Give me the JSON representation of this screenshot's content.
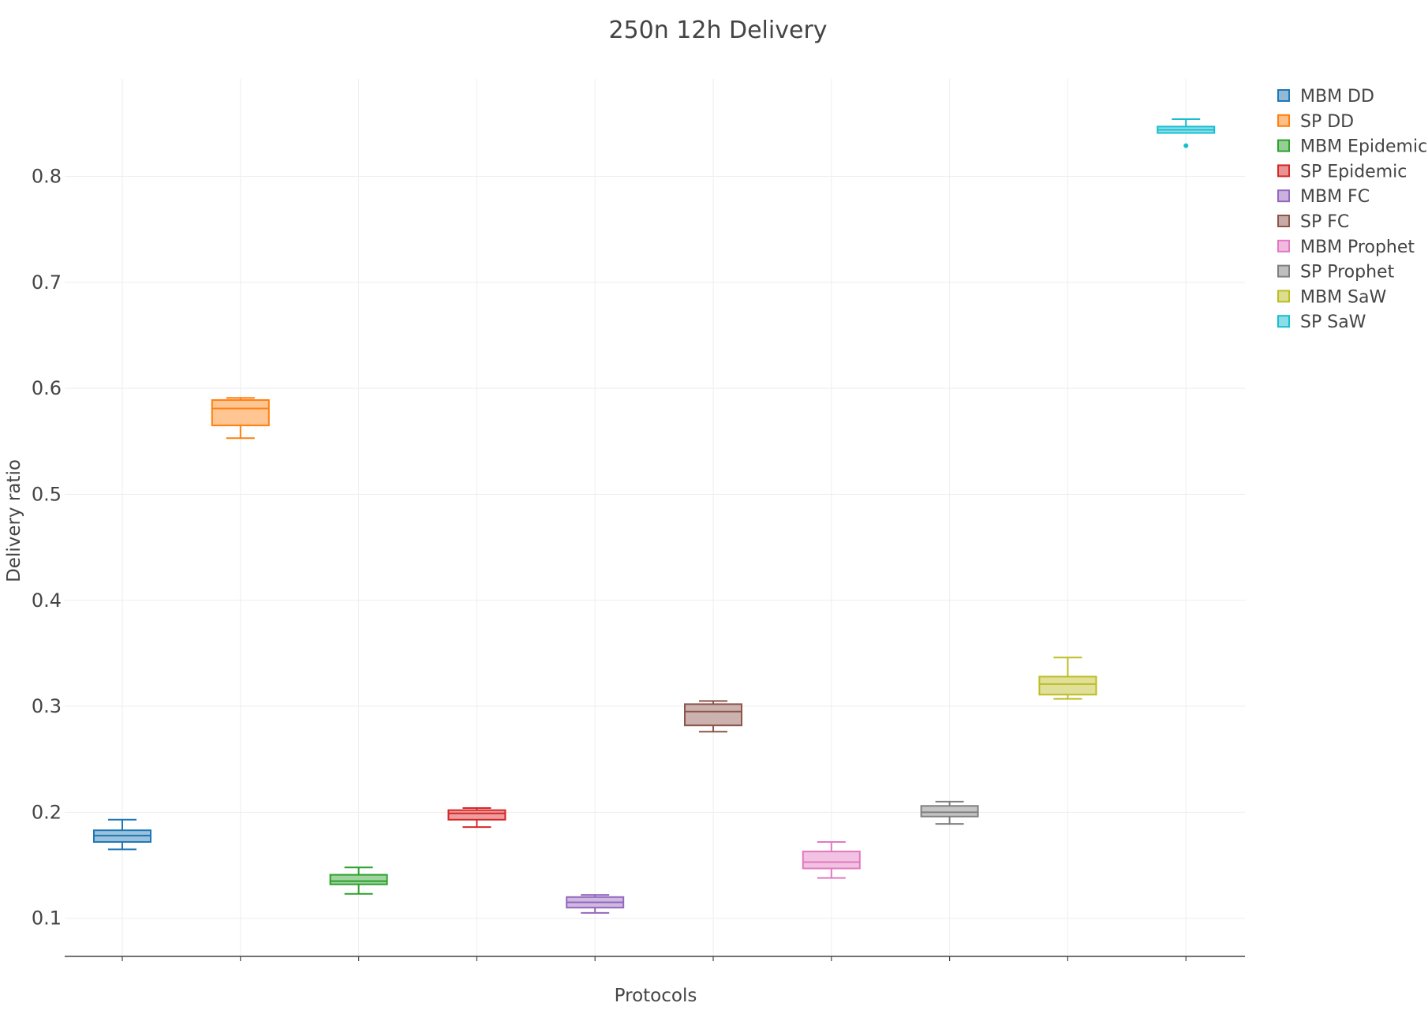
{
  "chart_data": {
    "type": "box",
    "title": "250n 12h Delivery",
    "xlabel": "Protocols",
    "ylabel": "Delivery ratio",
    "ylim": [
      0.064,
      0.892
    ],
    "yticks": [
      0.1,
      0.2,
      0.3,
      0.4,
      0.5,
      0.6,
      0.7,
      0.8
    ],
    "ytick_labels": [
      "0.1",
      "0.2",
      "0.3",
      "0.4",
      "0.5",
      "0.6",
      "0.7",
      "0.8"
    ],
    "grid": true,
    "legend_position": "top-right",
    "series": [
      {
        "name": "MBM DD",
        "color": "#1f77b4",
        "fill": "#8fbbd9",
        "min": 0.165,
        "q1": 0.172,
        "median": 0.178,
        "q3": 0.183,
        "max": 0.193,
        "outliers": []
      },
      {
        "name": "SP DD",
        "color": "#ff7f0e",
        "fill": "#ffbf86",
        "min": 0.553,
        "q1": 0.565,
        "median": 0.581,
        "q3": 0.589,
        "max": 0.591,
        "outliers": []
      },
      {
        "name": "MBM Epidemic",
        "color": "#2ca02c",
        "fill": "#95cf95",
        "min": 0.123,
        "q1": 0.132,
        "median": 0.135,
        "q3": 0.141,
        "max": 0.148,
        "outliers": []
      },
      {
        "name": "SP Epidemic",
        "color": "#d62728",
        "fill": "#ea9393",
        "min": 0.186,
        "q1": 0.193,
        "median": 0.199,
        "q3": 0.202,
        "max": 0.204,
        "outliers": []
      },
      {
        "name": "MBM FC",
        "color": "#9467bd",
        "fill": "#c9b3de",
        "min": 0.105,
        "q1": 0.11,
        "median": 0.115,
        "q3": 0.12,
        "max": 0.122,
        "outliers": []
      },
      {
        "name": "SP FC",
        "color": "#8c564b",
        "fill": "#c5aaa5",
        "min": 0.276,
        "q1": 0.282,
        "median": 0.295,
        "q3": 0.302,
        "max": 0.305,
        "outliers": []
      },
      {
        "name": "MBM Prophet",
        "color": "#e377c2",
        "fill": "#f1bbe0",
        "min": 0.138,
        "q1": 0.147,
        "median": 0.153,
        "q3": 0.163,
        "max": 0.172,
        "outliers": []
      },
      {
        "name": "SP Prophet",
        "color": "#7f7f7f",
        "fill": "#bfbfbf",
        "min": 0.189,
        "q1": 0.196,
        "median": 0.2,
        "q3": 0.206,
        "max": 0.21,
        "outliers": []
      },
      {
        "name": "MBM SaW",
        "color": "#bcbd22",
        "fill": "#dddd90",
        "min": 0.307,
        "q1": 0.311,
        "median": 0.321,
        "q3": 0.328,
        "max": 0.346,
        "outliers": []
      },
      {
        "name": "SP SaW",
        "color": "#17becf",
        "fill": "#8bdee7",
        "min": 0.841,
        "q1": 0.841,
        "median": 0.844,
        "q3": 0.847,
        "max": 0.854,
        "outliers": [
          0.829
        ]
      }
    ]
  }
}
